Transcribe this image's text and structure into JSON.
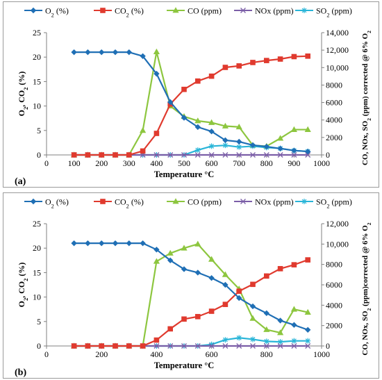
{
  "legend": [
    {
      "key": "o2",
      "label": "O2 (%)",
      "base": "O",
      "sub": "2",
      "rest": " (%)",
      "color": "#1F6FB5",
      "marker": "diamond"
    },
    {
      "key": "co2",
      "label": "CO2 (%)",
      "base": "CO",
      "sub": "2",
      "rest": " (%)",
      "color": "#E03A2E",
      "marker": "square"
    },
    {
      "key": "co",
      "label": "CO (ppm)",
      "base": "CO (ppm)",
      "sub": "",
      "rest": "",
      "color": "#8DC63F",
      "marker": "triangle"
    },
    {
      "key": "nox",
      "label": "NOx (ppm)",
      "base": "NOx (ppm)",
      "sub": "",
      "rest": "",
      "color": "#7B5EA7",
      "marker": "x"
    },
    {
      "key": "so2",
      "label": "SO2 (ppm)",
      "base": "SO",
      "sub": "2",
      "rest": " (ppm)",
      "color": "#29B5D8",
      "marker": "star"
    }
  ],
  "chart_data": [
    {
      "type": "line",
      "panel_label": "(a)",
      "xlabel": "Temperature °C",
      "ylabel_left": "O2, CO2 (%)",
      "ylabel_right": "CO, NOx, SO2 (ppm) corrected @ 6% O2",
      "xlim": [
        0,
        1000
      ],
      "xticks": [
        0,
        100,
        200,
        300,
        400,
        500,
        600,
        700,
        800,
        900,
        1000
      ],
      "ylim_left": [
        0,
        25
      ],
      "yticks_left": [
        0,
        5,
        10,
        15,
        20,
        25
      ],
      "ylim_right": [
        0,
        14000
      ],
      "yticks_right": [
        0,
        2000,
        4000,
        6000,
        8000,
        10000,
        12000,
        14000
      ],
      "yticks_right_labels": [
        "0",
        "2000",
        "4000",
        "6000",
        "8000",
        "10,000",
        "12,000",
        "14,000"
      ],
      "x": [
        100,
        150,
        200,
        250,
        300,
        350,
        400,
        450,
        500,
        550,
        600,
        650,
        700,
        750,
        800,
        850,
        900,
        950
      ],
      "series": [
        {
          "key": "o2",
          "axis": "left",
          "values": [
            21,
            21,
            21,
            21,
            21,
            20.2,
            16.6,
            10.8,
            7.6,
            5.7,
            4.8,
            3.0,
            2.7,
            2.0,
            1.7,
            1.3,
            0.9,
            0.7
          ]
        },
        {
          "key": "co2",
          "axis": "left",
          "values": [
            0,
            0,
            0,
            0,
            0,
            0.8,
            4.4,
            10.4,
            13.4,
            15.1,
            16.1,
            17.9,
            18.2,
            18.9,
            19.3,
            19.6,
            20.1,
            20.2
          ]
        },
        {
          "key": "co",
          "axis": "right",
          "values": [
            0,
            0,
            0,
            0,
            0,
            2800,
            11800,
            5600,
            4400,
            3900,
            3700,
            3300,
            3200,
            1100,
            1000,
            1900,
            2900,
            2900
          ]
        },
        {
          "key": "nox",
          "axis": "right",
          "values": [
            0,
            0,
            0,
            0,
            0,
            0,
            0,
            0,
            0,
            0,
            0,
            0,
            0,
            0,
            0,
            0,
            0,
            0
          ]
        },
        {
          "key": "so2",
          "axis": "right",
          "values": [
            0,
            0,
            0,
            0,
            0,
            0,
            0,
            0,
            0,
            550,
            1000,
            1100,
            900,
            1000,
            850,
            750,
            500,
            400
          ]
        }
      ]
    },
    {
      "type": "line",
      "panel_label": "(b)",
      "xlabel": "Temperature °C",
      "ylabel_left": "O2, CO2 (%)",
      "ylabel_right": "CO, NOx, SO2 (ppm)corrected @ 6% O2",
      "xlim": [
        0,
        1000
      ],
      "xticks": [
        0,
        200,
        400,
        600,
        800,
        1000
      ],
      "ylim_left": [
        0,
        25
      ],
      "yticks_left": [
        0,
        5,
        10,
        15,
        20,
        25
      ],
      "ylim_right": [
        0,
        12000
      ],
      "yticks_right": [
        0,
        2000,
        4000,
        6000,
        8000,
        10000,
        12000
      ],
      "yticks_right_labels": [
        "0",
        "2000",
        "4000",
        "6000",
        "8000",
        "10,000",
        "12,000"
      ],
      "x": [
        100,
        150,
        200,
        250,
        300,
        350,
        400,
        450,
        500,
        550,
        600,
        650,
        700,
        750,
        800,
        850,
        900,
        950
      ],
      "series": [
        {
          "key": "o2",
          "axis": "left",
          "values": [
            21,
            21,
            21,
            21,
            21,
            21,
            19.7,
            17.5,
            15.7,
            15.0,
            13.9,
            12.5,
            9.8,
            8.1,
            6.7,
            5.2,
            4.3,
            3.3
          ]
        },
        {
          "key": "co2",
          "axis": "left",
          "values": [
            0,
            0,
            0,
            0,
            0,
            0,
            1.2,
            3.5,
            5.5,
            6.0,
            7.1,
            8.5,
            11.2,
            12.6,
            14.3,
            15.8,
            16.6,
            17.6
          ]
        },
        {
          "key": "co",
          "axis": "right",
          "values": [
            0,
            0,
            0,
            0,
            0,
            0,
            8300,
            9100,
            9600,
            10000,
            8500,
            7000,
            5600,
            2700,
            1600,
            1300,
            3600,
            3300
          ]
        },
        {
          "key": "nox",
          "axis": "right",
          "values": [
            0,
            0,
            0,
            0,
            0,
            0,
            0,
            0,
            0,
            0,
            0,
            0,
            0,
            0,
            0,
            0,
            0,
            0
          ]
        },
        {
          "key": "so2",
          "axis": "right",
          "values": [
            0,
            0,
            0,
            0,
            0,
            0,
            0,
            0,
            0,
            0,
            150,
            600,
            800,
            650,
            450,
            400,
            500,
            500
          ]
        }
      ]
    }
  ]
}
